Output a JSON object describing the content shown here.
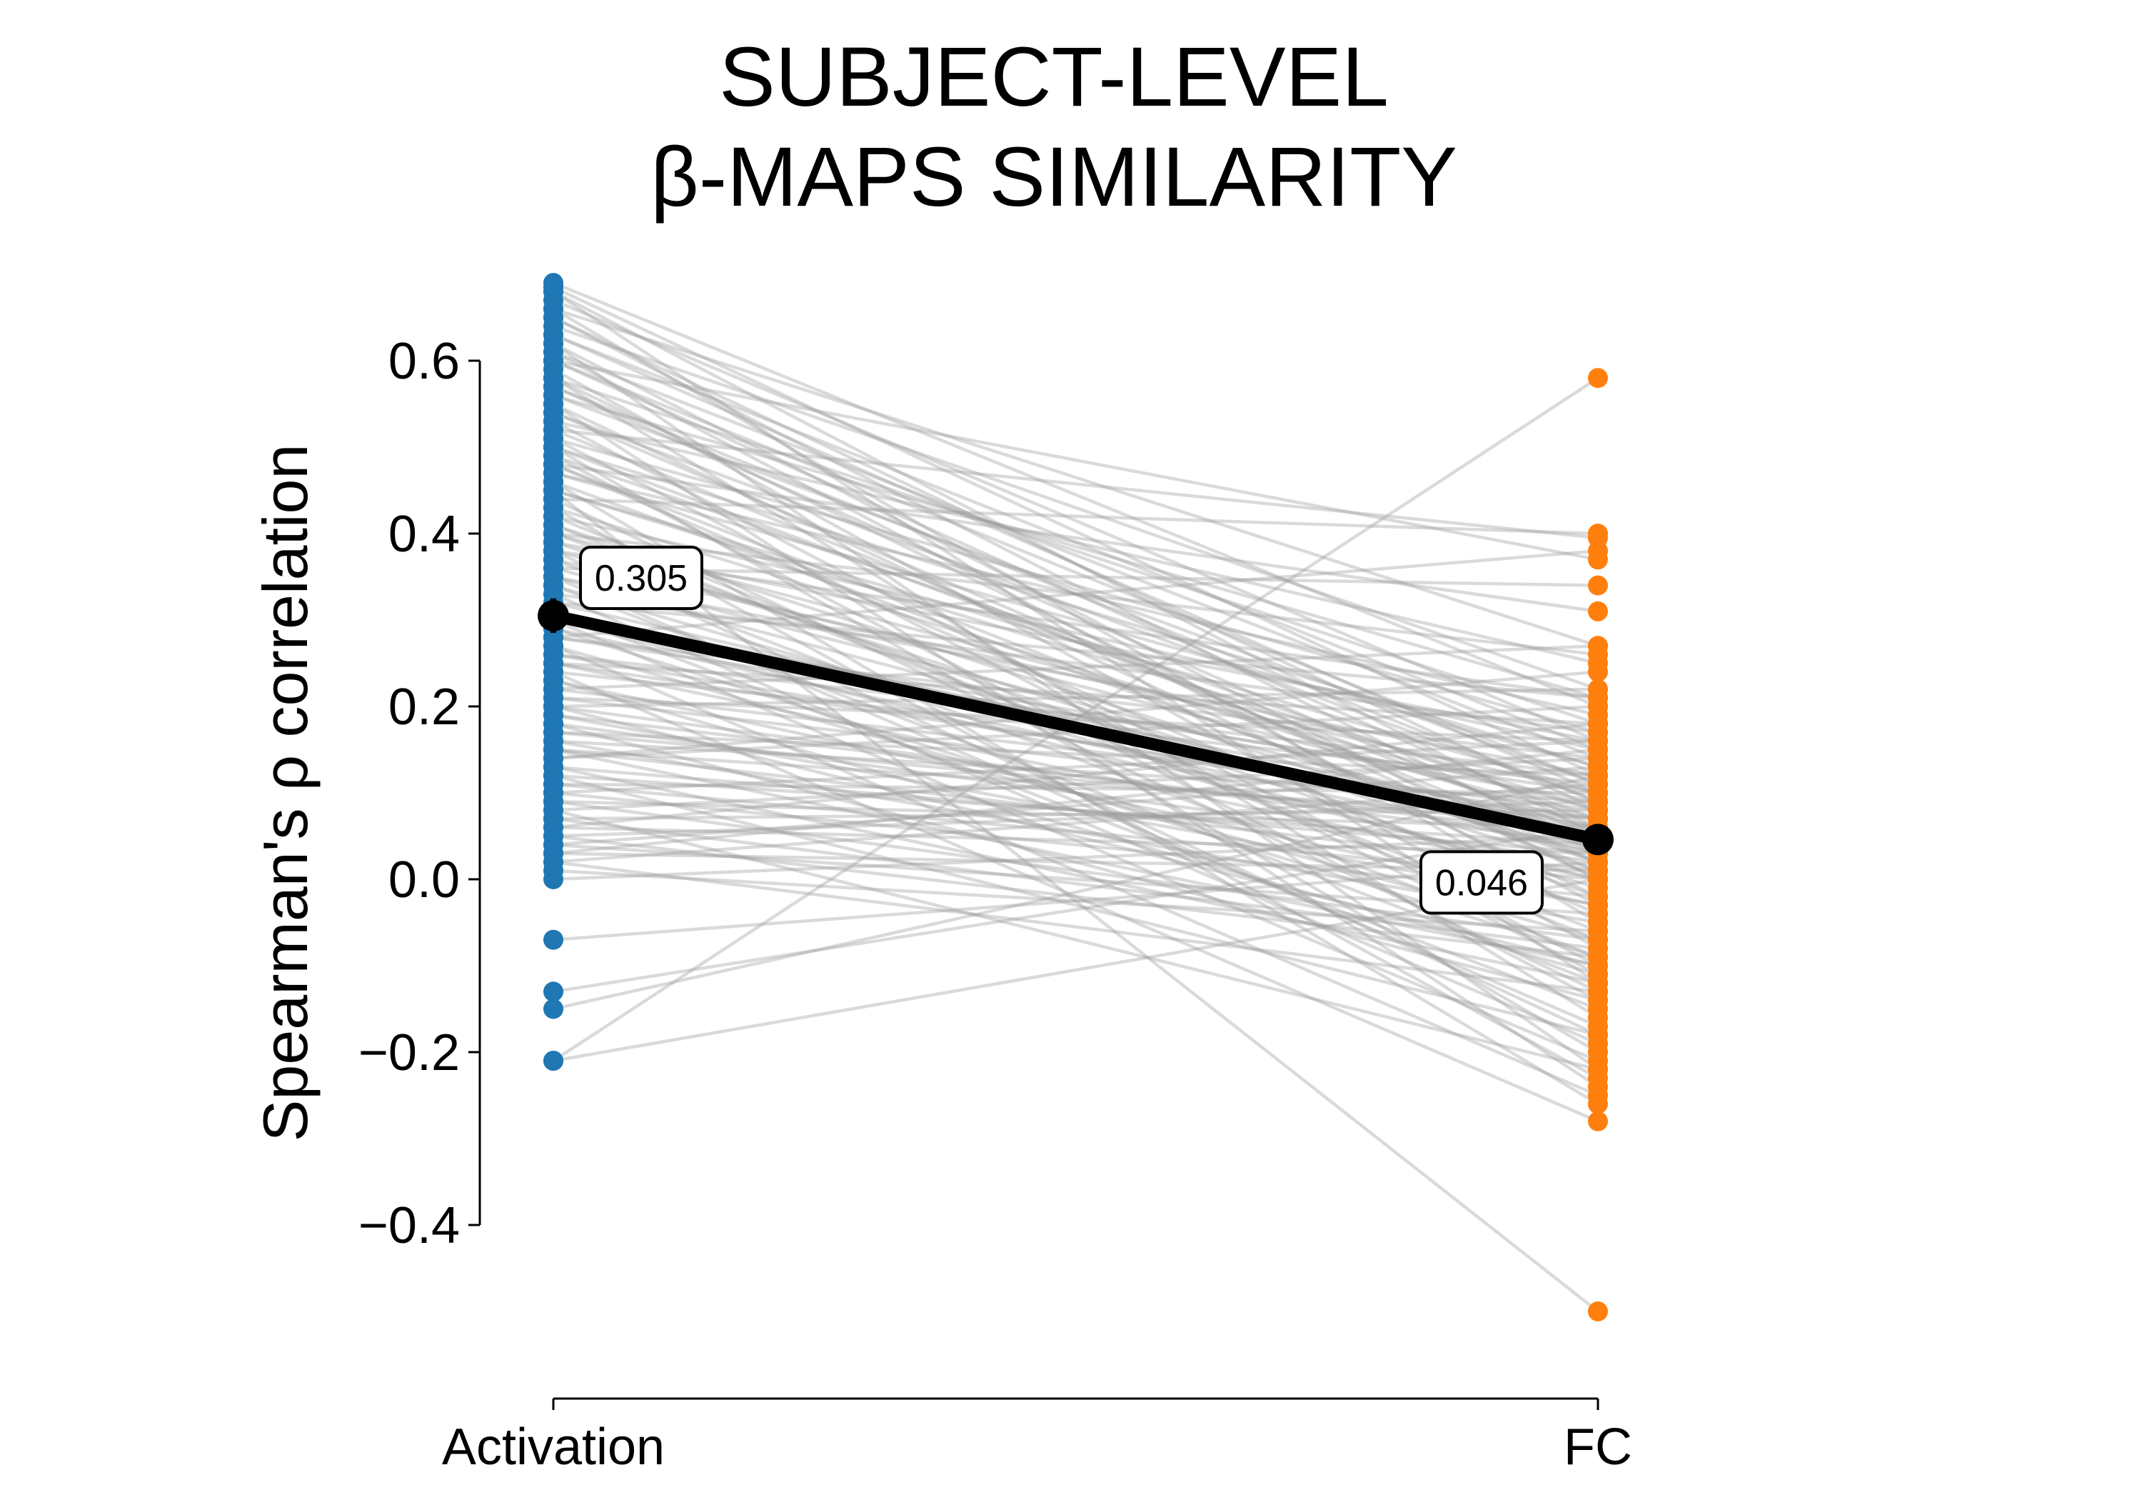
{
  "chart_data": {
    "type": "scatter",
    "title_lines": [
      "SUBJECT-LEVEL",
      "β-MAPS SIMILARITY"
    ],
    "ylabel": "Spearman's ρ correlation",
    "xlabel": "",
    "categories": [
      "Activation",
      "FC"
    ],
    "ylim": [
      -0.4,
      0.6
    ],
    "yticks": [
      -0.4,
      -0.2,
      0.0,
      0.2,
      0.4,
      0.6
    ],
    "ytick_labels": [
      "−0.4",
      "−0.2",
      "0.0",
      "0.2",
      "0.4",
      "0.6"
    ],
    "grid": false,
    "legend": "none",
    "colors": {
      "activation": "#1f77b4",
      "fc": "#ff7f0e",
      "pair_lines": "#9e9e9e",
      "mean": "#000000"
    },
    "mean": {
      "values": [
        0.305,
        0.046
      ],
      "labels": [
        "0.305",
        "0.046"
      ],
      "activation_errorbar": [
        0.285,
        0.325
      ]
    },
    "pairs": [
      [
        0.69,
        0.2
      ],
      [
        0.685,
        0.12
      ],
      [
        0.68,
        0.05
      ],
      [
        0.67,
        0.16
      ],
      [
        0.66,
        -0.05
      ],
      [
        0.65,
        0.08
      ],
      [
        0.64,
        0.22
      ],
      [
        0.63,
        0.1
      ],
      [
        0.62,
        0.0
      ],
      [
        0.61,
        0.14
      ],
      [
        0.6,
        0.06
      ],
      [
        0.59,
        -0.08
      ],
      [
        0.58,
        0.18
      ],
      [
        0.57,
        0.04
      ],
      [
        0.56,
        0.11
      ],
      [
        0.55,
        -0.02
      ],
      [
        0.54,
        0.09
      ],
      [
        0.53,
        0.25
      ],
      [
        0.52,
        0.03
      ],
      [
        0.51,
        -0.11
      ],
      [
        0.5,
        0.13
      ],
      [
        0.49,
        0.07
      ],
      [
        0.48,
        -0.04
      ],
      [
        0.47,
        0.19
      ],
      [
        0.46,
        0.02
      ],
      [
        0.45,
        0.1
      ],
      [
        0.44,
        -0.13
      ],
      [
        0.43,
        0.06
      ],
      [
        0.42,
        0.15
      ],
      [
        0.41,
        -0.06
      ],
      [
        0.4,
        0.08
      ],
      [
        0.39,
        0.01
      ],
      [
        0.38,
        0.21
      ],
      [
        0.37,
        -0.09
      ],
      [
        0.36,
        0.05
      ],
      [
        0.35,
        0.12
      ],
      [
        0.34,
        -0.01
      ],
      [
        0.33,
        0.17
      ],
      [
        0.32,
        0.04
      ],
      [
        0.31,
        -0.15
      ],
      [
        0.3,
        0.09
      ],
      [
        0.29,
        0.03
      ],
      [
        0.28,
        0.14
      ],
      [
        0.27,
        -0.07
      ],
      [
        0.26,
        0.06
      ],
      [
        0.25,
        0.0
      ],
      [
        0.24,
        0.11
      ],
      [
        0.23,
        -0.03
      ],
      [
        0.22,
        0.08
      ],
      [
        0.21,
        0.16
      ],
      [
        0.2,
        -0.1
      ],
      [
        0.19,
        0.05
      ],
      [
        0.18,
        0.02
      ],
      [
        0.17,
        0.12
      ],
      [
        0.16,
        -0.05
      ],
      [
        0.15,
        0.07
      ],
      [
        0.14,
        0.2
      ],
      [
        0.13,
        -0.12
      ],
      [
        0.12,
        0.04
      ],
      [
        0.11,
        0.1
      ],
      [
        0.1,
        -0.02
      ],
      [
        0.09,
        0.06
      ],
      [
        0.08,
        0.14
      ],
      [
        0.07,
        -0.08
      ],
      [
        0.06,
        0.03
      ],
      [
        0.05,
        0.09
      ],
      [
        0.04,
        -0.04
      ],
      [
        0.03,
        0.01
      ],
      [
        0.02,
        0.11
      ],
      [
        0.01,
        -0.06
      ],
      [
        0.0,
        0.05
      ],
      [
        0.6,
        0.37
      ],
      [
        0.52,
        0.395
      ],
      [
        0.44,
        0.4
      ],
      [
        0.36,
        0.34
      ],
      [
        0.28,
        0.38
      ],
      [
        0.48,
        0.31
      ],
      [
        0.22,
        0.27
      ],
      [
        0.4,
        0.26
      ],
      [
        0.33,
        -0.19
      ],
      [
        0.62,
        -0.22
      ],
      [
        0.55,
        -0.24
      ],
      [
        0.46,
        -0.26
      ],
      [
        0.38,
        -0.18
      ],
      [
        0.3,
        -0.21
      ],
      [
        0.24,
        -0.28
      ],
      [
        0.58,
        -0.16
      ],
      [
        0.5,
        -0.2
      ],
      [
        0.43,
        -0.23
      ],
      [
        0.35,
        -0.17
      ],
      [
        0.27,
        -0.25
      ],
      [
        0.18,
        -0.14
      ],
      [
        0.12,
        -0.18
      ],
      [
        0.08,
        -0.22
      ],
      [
        0.14,
        0.24
      ],
      [
        0.06,
        0.18
      ],
      [
        0.2,
        0.22
      ],
      [
        0.03,
        0.15
      ],
      [
        -0.07,
        0.02
      ],
      [
        -0.13,
        0.06
      ],
      [
        -0.15,
        0.12
      ],
      [
        -0.21,
        0.58
      ],
      [
        -0.21,
        0.0
      ],
      [
        0.45,
        -0.5
      ],
      [
        0.66,
        0.27
      ],
      [
        0.56,
        0.21
      ],
      [
        0.68,
        -0.12
      ],
      [
        0.63,
        0.15
      ],
      [
        0.57,
        0.09
      ],
      [
        0.47,
        0.13
      ],
      [
        0.41,
        0.02
      ],
      [
        0.37,
        0.1
      ],
      [
        0.31,
        0.06
      ],
      [
        0.26,
        0.12
      ],
      [
        0.16,
        0.09
      ],
      [
        0.11,
        0.0
      ],
      [
        0.05,
        -0.09
      ],
      [
        0.02,
        -0.13
      ],
      [
        0.53,
        -0.1
      ],
      [
        0.49,
        -0.14
      ],
      [
        0.42,
        -0.07
      ],
      [
        0.34,
        -0.12
      ],
      [
        0.29,
        -0.09
      ],
      [
        0.23,
        -0.11
      ],
      [
        0.19,
        -0.03
      ],
      [
        0.15,
        -0.1
      ],
      [
        0.09,
        -0.07
      ],
      [
        0.07,
        0.08
      ],
      [
        0.04,
        0.13
      ],
      [
        0.65,
        0.03
      ],
      [
        0.61,
        -0.03
      ],
      [
        0.54,
        0.02
      ],
      [
        0.51,
        0.17
      ],
      [
        0.39,
        0.16
      ],
      [
        0.32,
        0.21
      ],
      [
        0.25,
        0.18
      ],
      [
        0.21,
        0.07
      ],
      [
        0.13,
        0.03
      ],
      [
        0.1,
        0.16
      ],
      [
        0.6,
        0.11
      ],
      [
        0.5,
        0.05
      ],
      [
        0.4,
        -0.02
      ],
      [
        0.3,
        0.0
      ],
      [
        0.2,
        0.04
      ],
      [
        0.45,
        0.08
      ],
      [
        0.35,
        0.03
      ],
      [
        0.25,
        0.07
      ],
      [
        0.15,
        0.01
      ],
      [
        0.58,
        0.0
      ],
      [
        0.48,
        0.01
      ],
      [
        0.38,
        0.07
      ],
      [
        0.28,
        0.1
      ],
      [
        0.17,
        0.06
      ]
    ]
  }
}
